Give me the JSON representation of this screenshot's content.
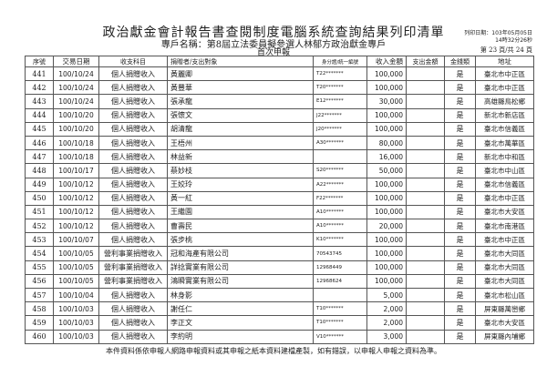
{
  "header": {
    "title": "政治獻金會計報告書查閱制度電腦系統查詢結果列印清單",
    "subtitle": "專戶名稱：第8屆立法委員擬參選人林郁方政治獻金專戶",
    "filing": "首次申報",
    "print_date": "列印日期：103年05月05日",
    "print_time": "14時32分26秒",
    "page": "第 23 頁/共 24 頁"
  },
  "columns": [
    "序號",
    "交易日期",
    "收支科目",
    "捐贈者/支出對象",
    "身分證/統一編號",
    "收入金額",
    "支出金額",
    "金錢類",
    "地址"
  ],
  "rows": [
    [
      "441",
      "100/10/24",
      "個人捐贈收入",
      "黃麗卿",
      "T22*******",
      "100,000",
      "",
      "是",
      "臺北市中正區"
    ],
    [
      "442",
      "100/10/24",
      "個人捐贈收入",
      "黃豐華",
      "T20*******",
      "100,000",
      "",
      "是",
      "臺北市中正區"
    ],
    [
      "443",
      "100/10/24",
      "個人捐贈收入",
      "張承龍",
      "E12*******",
      "30,000",
      "",
      "是",
      "高雄縣鳥松鄉"
    ],
    [
      "444",
      "100/10/20",
      "個人捐贈收入",
      "張懷文",
      "J22*******",
      "100,000",
      "",
      "是",
      "新北市新店區"
    ],
    [
      "445",
      "100/10/20",
      "個人捐贈收入",
      "胡清龍",
      "J20*******",
      "100,000",
      "",
      "是",
      "臺北市信義區"
    ],
    [
      "446",
      "100/10/18",
      "個人捐贈收入",
      "王梧州",
      "A30*******",
      "80,000",
      "",
      "是",
      "臺北市萬華區"
    ],
    [
      "447",
      "100/10/18",
      "個人捐贈收入",
      "林益新",
      "",
      "16,000",
      "",
      "是",
      "新北市中和區"
    ],
    [
      "448",
      "100/10/17",
      "個人捐贈收入",
      "蔡妙枝",
      "S20*******",
      "50,000",
      "",
      "是",
      "臺北市中山區"
    ],
    [
      "449",
      "100/10/12",
      "個人捐贈收入",
      "王姣玲",
      "A22*******",
      "100,000",
      "",
      "是",
      "臺北市信義區"
    ],
    [
      "450",
      "100/10/12",
      "個人捐贈收入",
      "黃一紅",
      "F22*******",
      "100,000",
      "",
      "是",
      "臺北市中正區"
    ],
    [
      "451",
      "100/10/12",
      "個人捐贈收入",
      "王繼園",
      "A10*******",
      "100,000",
      "",
      "是",
      "臺北市大安區"
    ],
    [
      "452",
      "100/10/12",
      "個人捐贈收入",
      "曹壽民",
      "A10*******",
      "20,000",
      "",
      "是",
      "臺北市南港區"
    ],
    [
      "453",
      "100/10/07",
      "個人捐贈收入",
      "張步桃",
      "K10*******",
      "100,000",
      "",
      "是",
      "臺北市中正區"
    ],
    [
      "454",
      "100/10/05",
      "營利事業捐贈收入",
      "冠和海產有限公司",
      "70543745",
      "100,000",
      "",
      "是",
      "臺北市大同區"
    ],
    [
      "455",
      "100/10/05",
      "營利事業捐贈收入",
      "詳捻實業有限公司",
      "12968449",
      "100,000",
      "",
      "是",
      "臺北市大同區"
    ],
    [
      "456",
      "100/10/05",
      "營利事業捐贈收入",
      "鴻瞬實業有限公司",
      "12968624",
      "100,000",
      "",
      "是",
      "臺北市大同區"
    ],
    [
      "457",
      "100/10/04",
      "個人捐贈收入",
      "林身影",
      "",
      "5,000",
      "",
      "是",
      "臺北市松山區"
    ],
    [
      "458",
      "100/10/03",
      "個人捐贈收入",
      "謝任仁",
      "T10*******",
      "2,000",
      "",
      "是",
      "屏東縣萬巒鄉"
    ],
    [
      "459",
      "100/10/03",
      "個人捐贈收入",
      "李正文",
      "T10*******",
      "2,000",
      "",
      "是",
      "臺北市大安區"
    ],
    [
      "460",
      "100/10/03",
      "個人捐贈收入",
      "李約明",
      "V10*******",
      "3,000",
      "",
      "是",
      "屏東縣內埔鄉"
    ]
  ],
  "footer": "本件資料係依申報人網路申報資料或其申報之紙本資料建檔產製，如有錯誤，以申報人申報之資料為準。"
}
